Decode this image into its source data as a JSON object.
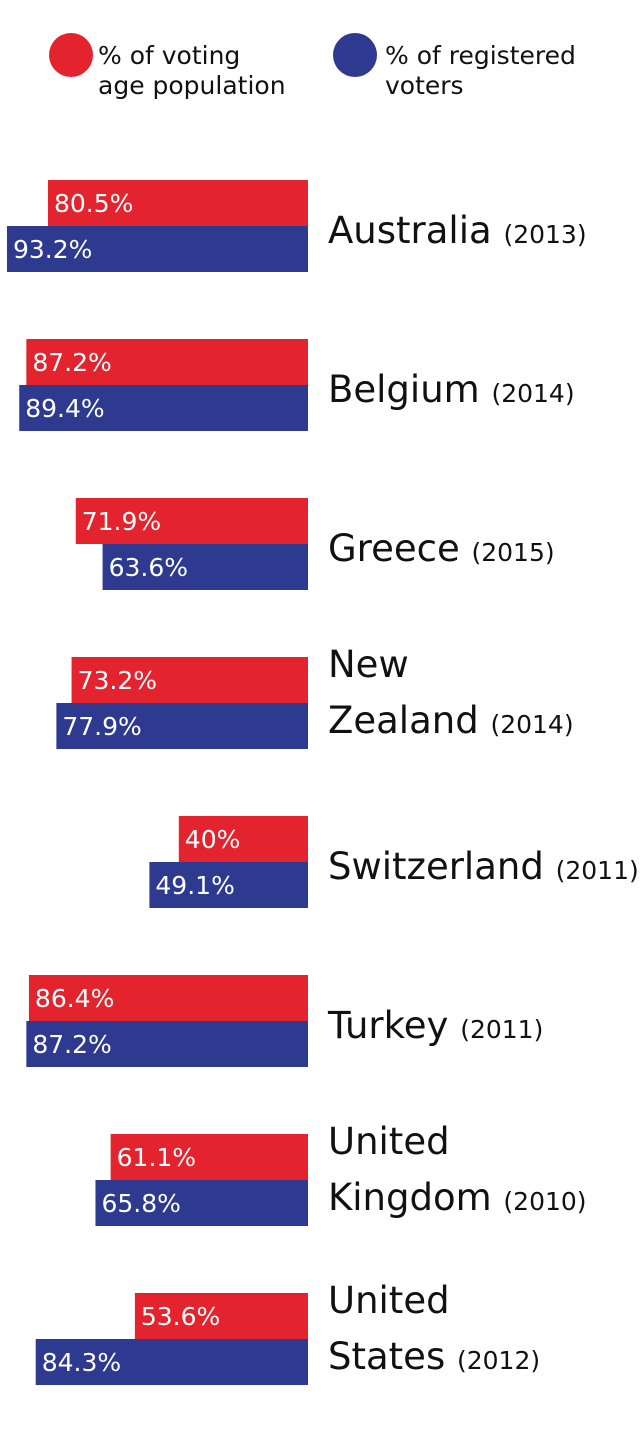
{
  "chart_data": {
    "type": "bar",
    "orientation": "horizontal",
    "grid": false,
    "legend_placement": "top",
    "series": [
      {
        "name_lines": [
          "% of voting",
          "age population"
        ],
        "color": "#e3232e",
        "values": [
          80.5,
          87.2,
          71.9,
          73.2,
          40,
          86.4,
          61.1,
          53.6
        ],
        "labels": [
          "80.5%",
          "87.2%",
          "71.9%",
          "73.2%",
          "40%",
          "86.4%",
          "61.1%",
          "53.6%"
        ]
      },
      {
        "name_lines": [
          "% of registered",
          "voters"
        ],
        "color": "#2d3a8f",
        "values": [
          93.2,
          89.4,
          63.6,
          77.9,
          49.1,
          87.2,
          65.8,
          84.3
        ],
        "labels": [
          "93.2%",
          "89.4%",
          "63.6%",
          "77.9%",
          "49.1%",
          "87.2%",
          "65.8%",
          "84.3%"
        ]
      }
    ],
    "categories": [
      {
        "name_lines": [
          "Australia"
        ],
        "year": "(2013)"
      },
      {
        "name_lines": [
          "Belgium"
        ],
        "year": "(2014)"
      },
      {
        "name_lines": [
          "Greece"
        ],
        "year": "(2015)"
      },
      {
        "name_lines": [
          "New",
          "Zealand"
        ],
        "year": "(2014)"
      },
      {
        "name_lines": [
          "Switzerland"
        ],
        "year": "(2011)"
      },
      {
        "name_lines": [
          "Turkey"
        ],
        "year": "(2011)"
      },
      {
        "name_lines": [
          "United",
          "Kingdom"
        ],
        "year": "(2010)"
      },
      {
        "name_lines": [
          "United",
          "States"
        ],
        "year": "(2012)"
      }
    ]
  }
}
